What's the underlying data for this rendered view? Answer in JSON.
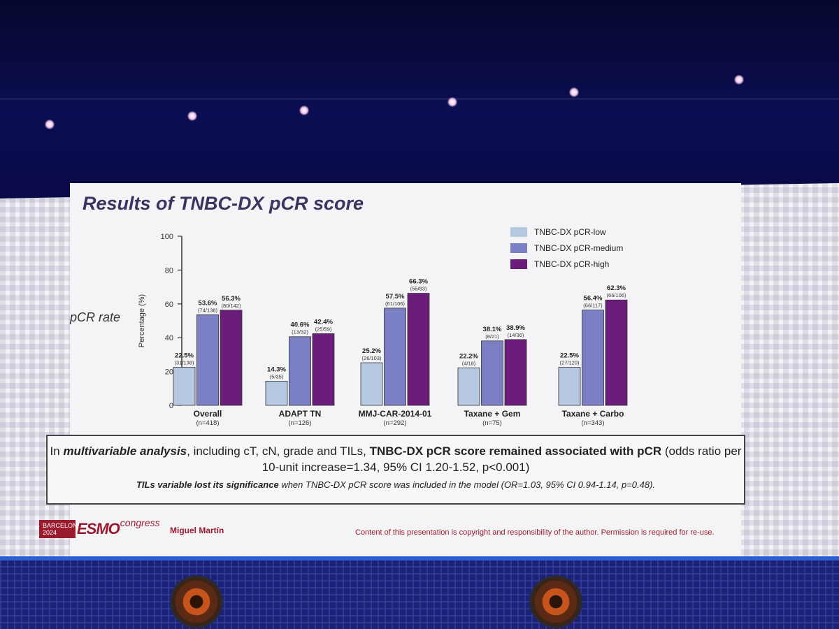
{
  "slide": {
    "title": "Results of TNBC-DX pCR score",
    "side_label": "pCR rate"
  },
  "legend": [
    {
      "label": "TNBC-DX pCR-low",
      "color": "#b7c9e0"
    },
    {
      "label": "TNBC-DX pCR-medium",
      "color": "#7b7fc4"
    },
    {
      "label": "TNBC-DX pCR-high",
      "color": "#6b1d7a"
    }
  ],
  "chart_data": {
    "type": "bar",
    "ylabel": "Percentage (%)",
    "ylim": [
      0,
      100
    ],
    "yticks": [
      "0",
      "20",
      "40",
      "60",
      "80",
      "100"
    ],
    "categories": [
      {
        "name": "Overall",
        "n": "(n=418)"
      },
      {
        "name": "ADAPT TN",
        "n": "(n=126)"
      },
      {
        "name": "MMJ-CAR-2014-01",
        "n": "(n=292)"
      },
      {
        "name": "Taxane + Gem",
        "n": "(n=75)"
      },
      {
        "name": "Taxane + Carbo",
        "n": "(n=343)"
      }
    ],
    "series": [
      {
        "name": "TNBC-DX pCR-low",
        "values": [
          22.5,
          14.3,
          25.2,
          22.2,
          22.5
        ],
        "value_labels": [
          "22.5%",
          "14.3%",
          "25.2%",
          "22.2%",
          "22.5%"
        ],
        "count_labels": [
          "(31/138)",
          "(5/35)",
          "(26/103)",
          "(4/18)",
          "(27/120)"
        ]
      },
      {
        "name": "TNBC-DX pCR-medium",
        "values": [
          53.6,
          40.6,
          57.5,
          38.1,
          56.4
        ],
        "value_labels": [
          "53.6%",
          "40.6%",
          "57.5%",
          "38.1%",
          "56.4%"
        ],
        "count_labels": [
          "(74/138)",
          "(13/32)",
          "(61/106)",
          "(8/21)",
          "(66/117)"
        ]
      },
      {
        "name": "TNBC-DX pCR-high",
        "values": [
          56.3,
          42.4,
          66.3,
          38.9,
          62.3
        ],
        "value_labels": [
          "56.3%",
          "42.4%",
          "66.3%",
          "38.9%",
          "62.3%"
        ],
        "count_labels": [
          "(80/142)",
          "(25/59)",
          "(55/83)",
          "(14/36)",
          "(66/106)"
        ]
      }
    ]
  },
  "callout": {
    "p1_a": "In ",
    "p1_b": "multivariable analysis",
    "p1_c": ", including cT, cN, grade and TILs, ",
    "p1_d": "TNBC-DX pCR score remained associated with pCR",
    "p1_e": " (odds ratio per 10-unit increase=1.34, 95% CI 1.20-1.52, p<0.001)",
    "p2_a": "TILs variable lost its significance",
    "p2_b": " when TNBC-DX pCR score was included in the model (OR=1.03, 95% CI 0.94-1.14, p=0.48)."
  },
  "footer": {
    "city": "BARCELONA",
    "year": "2024",
    "brand": "ESMO",
    "brand_suffix": "congress",
    "author": "Miguel Martín",
    "copyright": "Content of this presentation is copyright and responsibility of the author. Permission is required for re-use."
  }
}
